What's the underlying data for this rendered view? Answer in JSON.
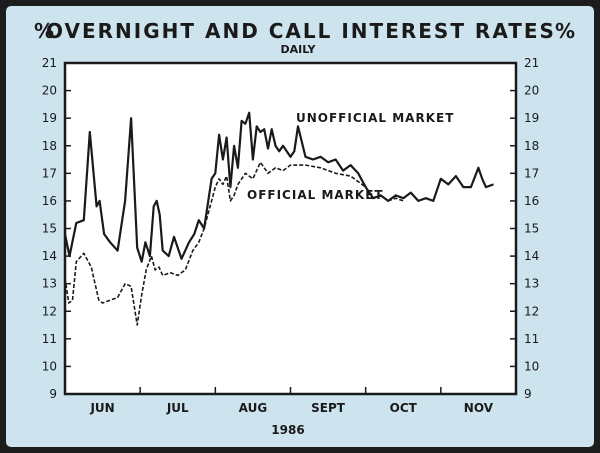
{
  "chart_data": {
    "type": "line",
    "title": "OVERNIGHT AND CALL INTEREST RATES",
    "subtitle": "DAILY",
    "left_unit": "%",
    "right_unit": "%",
    "xlabel": "1986",
    "ylim": [
      9,
      21
    ],
    "yticks": [
      9,
      10,
      11,
      12,
      13,
      14,
      15,
      16,
      17,
      18,
      19,
      20,
      21
    ],
    "xlim": [
      0,
      6
    ],
    "months": [
      "JUN",
      "JUL",
      "AUG",
      "SEPT",
      "OCT",
      "NOV"
    ],
    "grid": false,
    "legend": "inline annotations",
    "series": [
      {
        "name": "UNOFFICIAL MARKET",
        "style": "solid",
        "color": "#1a1a1a",
        "x": [
          0.0,
          0.06,
          0.15,
          0.25,
          0.33,
          0.42,
          0.46,
          0.52,
          0.6,
          0.7,
          0.8,
          0.88,
          0.96,
          1.02,
          1.07,
          1.13,
          1.18,
          1.22,
          1.26,
          1.3,
          1.38,
          1.45,
          1.55,
          1.65,
          1.72,
          1.78,
          1.85,
          1.95,
          2.0,
          2.05,
          2.1,
          2.15,
          2.2,
          2.25,
          2.3,
          2.35,
          2.4,
          2.45,
          2.5,
          2.55,
          2.6,
          2.65,
          2.7,
          2.75,
          2.8,
          2.85,
          2.9,
          2.95,
          3.0,
          3.05,
          3.1,
          3.2,
          3.3,
          3.4,
          3.5,
          3.6,
          3.7,
          3.8,
          3.9,
          4.0,
          4.1,
          4.2,
          4.3,
          4.4,
          4.5,
          4.6,
          4.7,
          4.8,
          4.9,
          5.0,
          5.1,
          5.2,
          5.3,
          5.4,
          5.5,
          5.55,
          5.6,
          5.7
        ],
        "y": [
          14.8,
          14.0,
          15.2,
          15.3,
          18.5,
          15.8,
          16.0,
          14.8,
          14.5,
          14.2,
          16.0,
          19.0,
          14.3,
          13.8,
          14.5,
          14.0,
          15.8,
          16.0,
          15.5,
          14.2,
          14.0,
          14.7,
          13.9,
          14.5,
          14.8,
          15.3,
          15.0,
          16.8,
          17.0,
          18.4,
          17.5,
          18.3,
          16.5,
          18.0,
          17.2,
          18.9,
          18.8,
          19.2,
          17.5,
          18.7,
          18.5,
          18.6,
          17.9,
          18.6,
          18.0,
          17.8,
          18.0,
          17.8,
          17.6,
          17.8,
          18.7,
          17.6,
          17.5,
          17.6,
          17.4,
          17.5,
          17.1,
          17.3,
          17.0,
          16.5,
          16.1,
          16.2,
          16.0,
          16.2,
          16.1,
          16.3,
          16.0,
          16.1,
          16.0,
          16.8,
          16.6,
          16.9,
          16.5,
          16.5,
          17.2,
          16.8,
          16.5,
          16.6
        ]
      },
      {
        "name": "OFFICIAL MARKET",
        "style": "dashed",
        "color": "#1a1a1a",
        "x": [
          0.0,
          0.05,
          0.1,
          0.15,
          0.25,
          0.35,
          0.45,
          0.5,
          0.6,
          0.7,
          0.8,
          0.88,
          0.96,
          1.02,
          1.08,
          1.15,
          1.2,
          1.25,
          1.3,
          1.4,
          1.5,
          1.6,
          1.7,
          1.78,
          1.85,
          1.95,
          2.0,
          2.05,
          2.1,
          2.15,
          2.2,
          2.25,
          2.3,
          2.4,
          2.5,
          2.6,
          2.7,
          2.8,
          2.9,
          3.0,
          3.2,
          3.4,
          3.6,
          3.8,
          3.9,
          4.0,
          4.1,
          4.2,
          4.3,
          4.4,
          4.5
        ],
        "y": [
          13.2,
          12.3,
          12.4,
          13.8,
          14.1,
          13.6,
          12.4,
          12.3,
          12.4,
          12.5,
          13.0,
          12.9,
          11.5,
          12.6,
          13.5,
          14.0,
          13.5,
          13.6,
          13.3,
          13.4,
          13.3,
          13.5,
          14.2,
          14.5,
          15.0,
          16.0,
          16.5,
          16.8,
          16.6,
          16.9,
          16.0,
          16.2,
          16.6,
          17.0,
          16.8,
          17.4,
          17.0,
          17.2,
          17.1,
          17.3,
          17.3,
          17.2,
          17.0,
          16.9,
          16.7,
          16.5,
          16.1,
          16.2,
          16.0,
          16.1,
          16.0
        ]
      }
    ]
  }
}
